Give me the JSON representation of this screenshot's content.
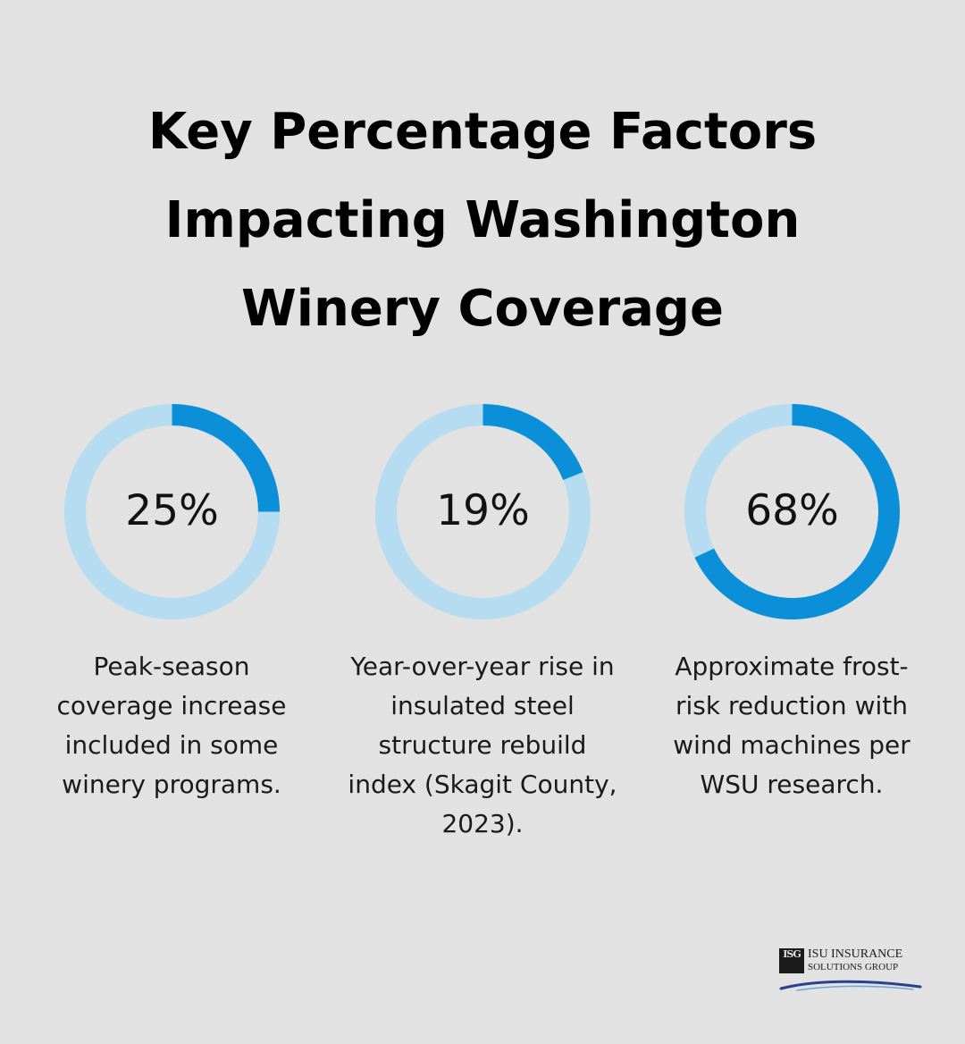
{
  "title_lines": [
    "Key Percentage Factors",
    "Impacting Washington",
    "Winery Coverage"
  ],
  "colors": {
    "background": "#e1e2e1",
    "ring_track": "#b5dcf0",
    "ring_fill": "#0b8fd8",
    "text": "#000000"
  },
  "chart_data": {
    "type": "donut",
    "items": [
      {
        "value": 25,
        "label": "25%",
        "caption_lines": [
          "Peak-season",
          "coverage increase",
          "included in some",
          "winery programs."
        ]
      },
      {
        "value": 19,
        "label": "19%",
        "caption_lines": [
          "Year-over-year rise in",
          "insulated steel",
          "structure rebuild",
          "index (Skagit County,",
          "2023)."
        ]
      },
      {
        "value": 68,
        "label": "68%",
        "caption_lines": [
          "Approximate frost-",
          "risk reduction with",
          "wind machines per",
          "WSU research."
        ]
      }
    ]
  },
  "logo": {
    "mark": "ISG",
    "line1": "ISU INSURANCE",
    "line2": "SOLUTIONS GROUP",
    "icon": "isg-logo-icon"
  }
}
